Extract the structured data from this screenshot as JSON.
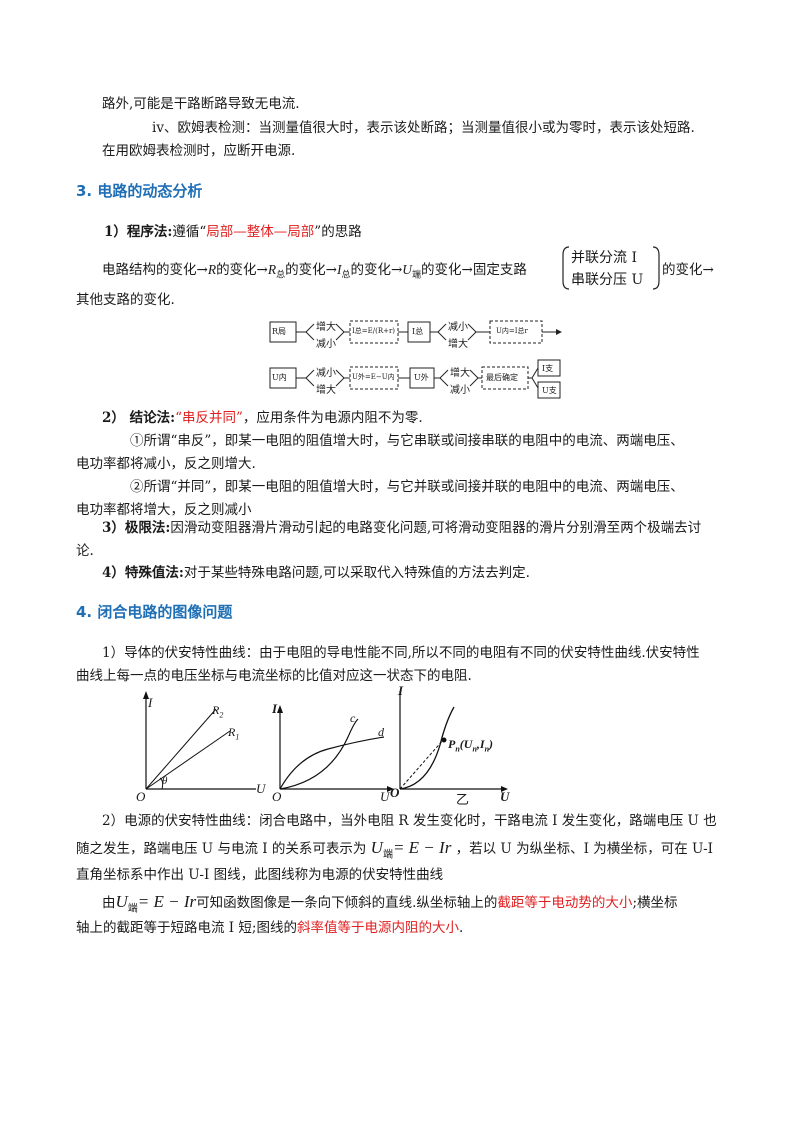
{
  "p1": "路外,可能是干路断路导致无电流.",
  "p2": "iv、欧姆表检测：当测量值很大时，表示该处断路；当测量值很小或为零时，表示该处短路.",
  "p3": "在用欧姆表检测时，应断开电源.",
  "h3": "3. 电路的动态分析",
  "m1": {
    "label": "1）程序法:",
    "pre": "遵循“",
    "red": "局部—整体—局部",
    "post": "”的思路"
  },
  "chain": {
    "a": "电路结构的变化→",
    "b": "的变化→",
    "c": "的变化→",
    "d": "的变化→",
    "e": "的变化→固定支路",
    "f": "的变化→",
    "R": "R",
    "Rtot": "R",
    "Itot": "I",
    "U": "U",
    "sub_zong": "总",
    "sub_duan": "端",
    "brk1": "并联分流 I",
    "brk2": "串联分压 U"
  },
  "chain2": "其他支路的变化.",
  "flow": {
    "r1_box1": "R局",
    "r1_up": "增大",
    "r1_down": "减小",
    "r1_eq": "I总=E/(R+r)",
    "r1_box3": "I总",
    "r1_up2": "减小",
    "r1_down2": "增大",
    "r1_box4": "U内=I总r",
    "r2_box1": "U内",
    "r2_up": "减小",
    "r2_down": "增大",
    "r2_eq": "U外=E−U内",
    "r2_box3": "U外",
    "r2_up2": "增大",
    "r2_down2": "减小",
    "r2_final": "最后确定",
    "r2_out1": "I支",
    "r2_out2": "U支"
  },
  "m2": {
    "label": "2）  结论法:",
    "red": "“串反并同”",
    "post": "，应用条件为电源内阻不为零."
  },
  "m2a": "①所谓“串反”，即某一电阻的阻值增大时，与它串联或间接串联的电阻中的电流、两端电压、",
  "m2b": "电功率都将减小，反之则增大.",
  "m2c": "②所谓“并同”，即某一电阻的阻值增大时，与它并联或间接并联的电阻中的电流、两端电压、",
  "m2d": "电功率都将增大，反之则减小",
  "m3": {
    "label": "3）极限法:",
    "text": "因滑动变阻器滑片滑动引起的电路变化问题,可将滑动变阻器的滑片分别滑至两个极端去讨"
  },
  "m3b": "论.",
  "m4": {
    "label": "4）特殊值法:",
    "text": "对于某些特殊电路问题,可以采取代入特殊值的方法去判定."
  },
  "h4": "4. 闭合电路的图像问题",
  "q1a": "1）导体的伏安特性曲线：由于电阻的导电性能不同,所以不同的电阻有不同的伏安特性曲线.伏安特性",
  "q1b": "曲线上每一点的电压坐标与电流坐标的比值对应这一状态下的电阻.",
  "graphs": {
    "g1": {
      "I": "I",
      "O": "O",
      "U": "U",
      "R2": "R",
      "R2s": "2",
      "R1": "R",
      "R1s": "1",
      "theta": "θ"
    },
    "g2": {
      "I": "I",
      "O": "O",
      "U": "U",
      "c": "c",
      "d": "d"
    },
    "g3": {
      "I": "I",
      "O": "O",
      "U": "U",
      "yi": "乙",
      "P": "P",
      "Ps": "n",
      "pt": "(U",
      "pts": "n",
      "pt2": ",I",
      "pts2": "n",
      "pt3": ")"
    }
  },
  "q2a": "2）电源的伏安特性曲线：闭合电路中，当外电阻 R 发生变化时，干路电流 I 发生变化，路端电压 U 也",
  "q2b_pre": "随之发生，路端电压 U 与电流 I 的关系可表示为",
  "q2b_post": "，若以 U 为纵坐标、I 为横坐标，可在 U-I",
  "eq": {
    "U": "U",
    "sub": "端",
    "rest": "= E − Ir"
  },
  "q2c": "直角坐标系中作出 U-I 图线，此图线称为电源的伏安特性曲线",
  "q3_pre": "由",
  "q3_mid": "可知函数图像是一条向下倾斜的直线.纵坐标轴上的",
  "q3_red1": "截距等于电动势的大小",
  "q3_post": ";横坐标",
  "q3b_pre": "轴上的截距等于短路电流 I 短;图线的",
  "q3b_red": "斜率值等于电源内阻的大小",
  "q3b_post": "."
}
